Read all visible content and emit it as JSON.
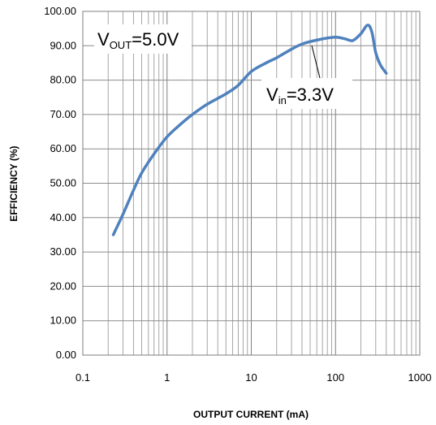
{
  "chart_data": {
    "type": "line",
    "xlabel": "OUTPUT CURRENT (mA)",
    "ylabel": "EFFICIENCY (%)",
    "x_scale": "log",
    "xlim": [
      0.1,
      1000
    ],
    "ylim": [
      0,
      100
    ],
    "grid": true,
    "x_ticks": [
      "0.1",
      "1",
      "10",
      "100",
      "1000"
    ],
    "y_ticks": [
      "0.00",
      "10.00",
      "20.00",
      "30.00",
      "40.00",
      "50.00",
      "60.00",
      "70.00",
      "80.00",
      "90.00",
      "100.00"
    ],
    "series": [
      {
        "color": "#4f81bd",
        "points": [
          [
            0.23,
            35.0
          ],
          [
            0.3,
            41.0
          ],
          [
            0.4,
            48.0
          ],
          [
            0.5,
            53.0
          ],
          [
            0.7,
            58.5
          ],
          [
            1.0,
            63.5
          ],
          [
            1.5,
            67.5
          ],
          [
            2.0,
            70.0
          ],
          [
            3.0,
            73.0
          ],
          [
            5.0,
            76.0
          ],
          [
            7.0,
            78.5
          ],
          [
            10.0,
            82.5
          ],
          [
            15.0,
            85.0
          ],
          [
            20.0,
            86.5
          ],
          [
            30.0,
            89.0
          ],
          [
            40.0,
            90.5
          ],
          [
            50.0,
            91.2
          ],
          [
            70.0,
            92.0
          ],
          [
            100.0,
            92.5
          ],
          [
            130.0,
            92.0
          ],
          [
            160.0,
            91.5
          ],
          [
            200.0,
            93.5
          ],
          [
            240.0,
            96.0
          ],
          [
            270.0,
            94.0
          ],
          [
            300.0,
            88.0
          ],
          [
            340.0,
            84.5
          ],
          [
            400.0,
            82.0
          ]
        ]
      }
    ],
    "annotations": [
      {
        "main": "V",
        "sub": "OUT",
        "rest": "=5.0V"
      },
      {
        "main": "V",
        "sub": "in",
        "rest": "=3.3V"
      }
    ]
  }
}
